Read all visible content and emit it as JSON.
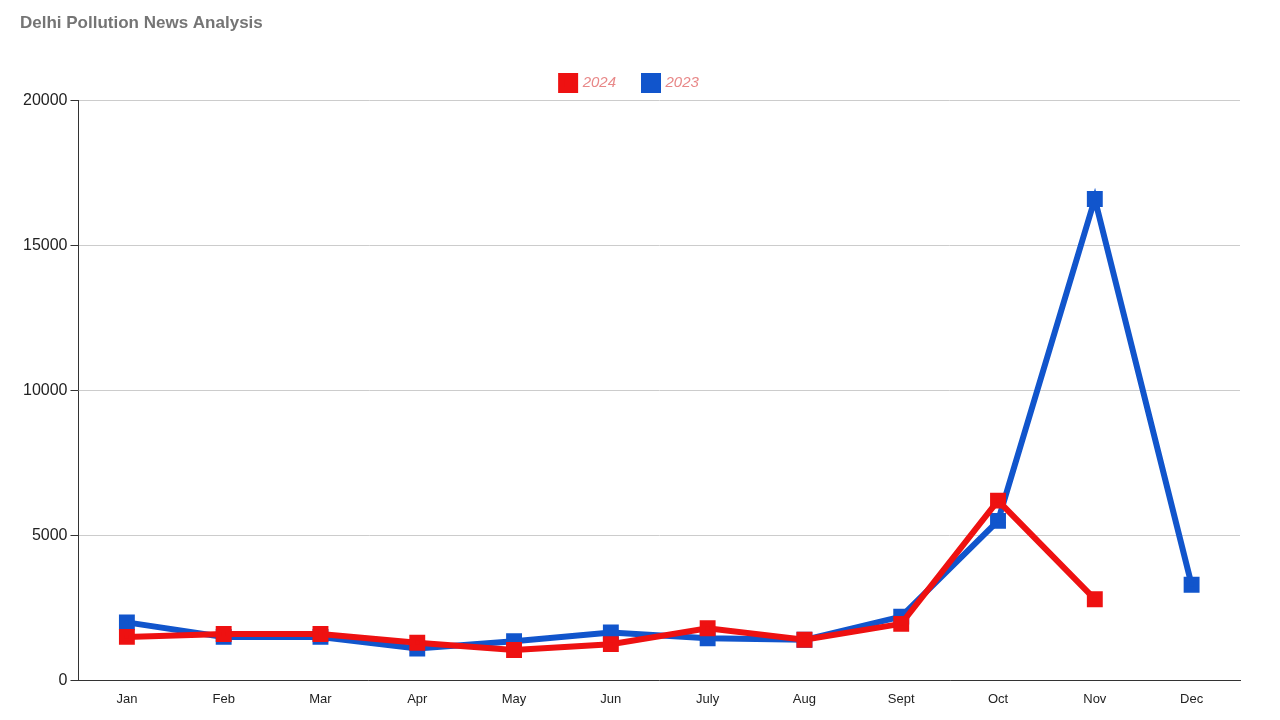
{
  "chart_data": {
    "type": "line",
    "title": "Delhi Pollution News Analysis",
    "categories": [
      "Jan",
      "Feb",
      "Mar",
      "Apr",
      "May",
      "Jun",
      "July",
      "Aug",
      "Sept",
      "Oct",
      "Nov",
      "Dec"
    ],
    "series": [
      {
        "name": "2024",
        "color": "#ee1111",
        "marker": "square",
        "values": [
          1500,
          1600,
          1600,
          1300,
          1050,
          1250,
          1800,
          1400,
          1950,
          6200,
          2800,
          null
        ]
      },
      {
        "name": "2023",
        "color": "#1155cc",
        "marker": "square",
        "values": [
          2000,
          1500,
          1500,
          1100,
          1350,
          1650,
          1450,
          1400,
          2200,
          5500,
          16600,
          3300
        ]
      }
    ],
    "ylim": [
      0,
      20000
    ],
    "yticks": [
      0,
      5000,
      10000,
      15000,
      20000
    ],
    "grid": true,
    "legend": "top"
  }
}
